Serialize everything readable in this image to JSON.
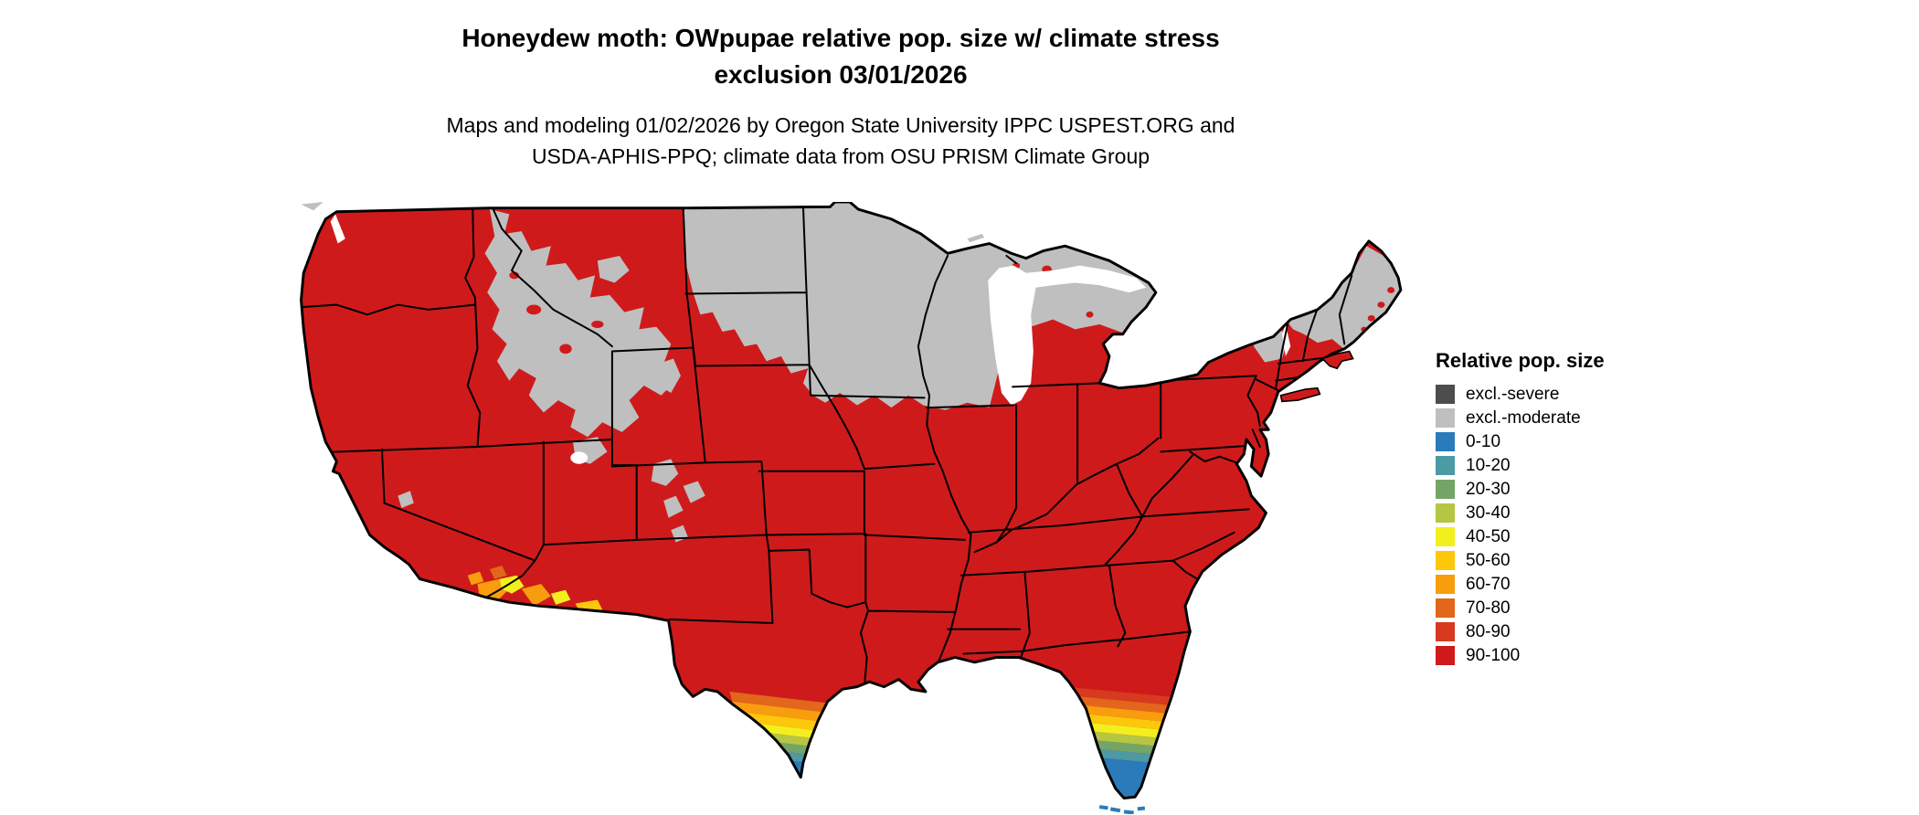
{
  "title": {
    "line1": "Honeydew moth: OWpupae relative pop. size w/ climate stress",
    "line2": "exclusion 03/01/2026"
  },
  "subtitle": {
    "line1": "Maps and modeling 01/02/2026 by Oregon State University IPPC USPEST.ORG and",
    "line2": "USDA-APHIS-PPQ; climate data from OSU PRISM Climate Group"
  },
  "legend": {
    "title": "Relative pop. size",
    "items": [
      {
        "label": "excl.-severe",
        "color": "#4d4d4d"
      },
      {
        "label": "excl.-moderate",
        "color": "#bfbfbf"
      },
      {
        "label": "0-10",
        "color": "#2b7bba"
      },
      {
        "label": "10-20",
        "color": "#4b9aa4"
      },
      {
        "label": "20-30",
        "color": "#74a567"
      },
      {
        "label": "30-40",
        "color": "#b5c642"
      },
      {
        "label": "40-50",
        "color": "#f3ef1f"
      },
      {
        "label": "50-60",
        "color": "#fdc70c"
      },
      {
        "label": "60-70",
        "color": "#f89d0e"
      },
      {
        "label": "70-80",
        "color": "#e2661b"
      },
      {
        "label": "80-90",
        "color": "#d73a1e"
      },
      {
        "label": "90-100",
        "color": "#cf1a1b"
      }
    ]
  },
  "map": {
    "region": "Contiguous United States",
    "dominant_class": "90-100",
    "excluded_moderate_areas": "Northern Rockies (W Montana, C Idaho, NW Wyoming, N Utah), North Dakota, Minnesota, Wisconsin, Michigan, NE South Dakota, N Iowa fringe, Maine, N New Hampshire, N Vermont, Adirondacks, Colorado Rockies patches",
    "low_value_gradient_areas": "South Florida peninsula (0-10 at tip), South Texas Rio Grande tip (0-10 at tip), SW Arizona / SE California desert patches (40-70)"
  }
}
